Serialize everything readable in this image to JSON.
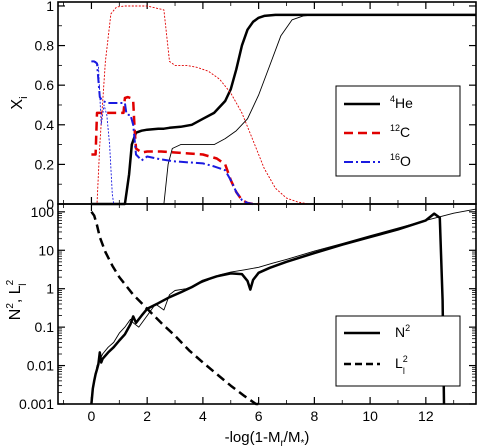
{
  "chart_data": [
    {
      "type": "line",
      "ylabel": "X",
      "ylabel_sub": "i",
      "xlim": [
        -1.2,
        13.8
      ],
      "ylim": [
        0,
        1.02
      ],
      "yticks": [
        "0",
        "0.2",
        "0.4",
        "0.6",
        "0.8",
        "1"
      ],
      "ytick_values": [
        0,
        0.2,
        0.4,
        0.6,
        0.8,
        1.0
      ],
      "legend_position": "center-right",
      "series": [
        {
          "name": "4He",
          "sup": "4",
          "base": "He",
          "style": "solid-thick",
          "color": "#000000",
          "x": [
            0,
            1.2,
            1.35,
            1.45,
            1.6,
            1.8,
            2.0,
            2.4,
            2.6,
            2.8,
            3.2,
            3.6,
            4.0,
            4.4,
            4.8,
            5.0,
            5.2,
            5.4,
            5.6,
            5.8,
            6.0,
            6.2,
            6.6,
            7.0,
            8.0,
            10.0,
            12.0,
            13.8
          ],
          "y": [
            0,
            0,
            0.15,
            0.3,
            0.36,
            0.37,
            0.375,
            0.38,
            0.38,
            0.385,
            0.39,
            0.4,
            0.43,
            0.46,
            0.52,
            0.58,
            0.68,
            0.8,
            0.88,
            0.92,
            0.94,
            0.95,
            0.955,
            0.955,
            0.955,
            0.955,
            0.955,
            0.955
          ]
        },
        {
          "name": "4He-thin",
          "style": "solid-thin",
          "color": "#000000",
          "legend": false,
          "x": [
            0,
            2.6,
            2.75,
            2.9,
            3.2,
            3.6,
            4.0,
            4.4,
            4.8,
            5.2,
            5.6,
            6.0,
            6.4,
            6.8,
            7.2,
            7.6,
            8.0,
            10.0,
            13.8
          ],
          "y": [
            0,
            0,
            0.2,
            0.28,
            0.3,
            0.3,
            0.3,
            0.3,
            0.33,
            0.37,
            0.43,
            0.55,
            0.7,
            0.85,
            0.93,
            0.95,
            0.955,
            0.955,
            0.955
          ]
        },
        {
          "name": "12C",
          "sup": "12",
          "base": "C",
          "style": "dashed-thick",
          "color": "#e00000",
          "x": [
            0,
            0.15,
            0.2,
            0.3,
            0.5,
            0.8,
            1.0,
            1.15,
            1.2,
            1.3,
            1.4,
            1.5,
            1.55,
            1.6,
            1.8,
            2.0,
            2.5,
            3.0,
            3.5,
            4.0,
            4.5,
            4.8,
            5.0,
            5.2,
            5.4,
            5.6,
            5.8,
            6.0
          ],
          "y": [
            0.25,
            0.25,
            0.46,
            0.46,
            0.46,
            0.46,
            0.46,
            0.46,
            0.535,
            0.54,
            0.535,
            0.52,
            0.38,
            0.28,
            0.26,
            0.265,
            0.265,
            0.26,
            0.255,
            0.25,
            0.23,
            0.2,
            0.12,
            0.06,
            0.02,
            0.005,
            0,
            0
          ]
        },
        {
          "name": "16O",
          "sup": "16",
          "base": "O",
          "style": "dashdot-thick",
          "color": "#1a1ae0",
          "x": [
            0,
            0.1,
            0.2,
            0.3,
            0.4,
            0.6,
            1.0,
            1.2,
            1.25,
            1.3,
            1.4,
            1.5,
            1.6,
            1.8,
            2.0,
            2.5,
            3.0,
            3.5,
            4.0,
            4.4,
            4.8,
            5.0,
            5.2,
            5.4,
            5.6,
            5.8
          ],
          "y": [
            0.72,
            0.72,
            0.71,
            0.54,
            0.52,
            0.51,
            0.51,
            0.51,
            0.46,
            0.45,
            0.45,
            0.4,
            0.25,
            0.22,
            0.24,
            0.225,
            0.215,
            0.21,
            0.205,
            0.19,
            0.17,
            0.12,
            0.06,
            0.02,
            0.005,
            0
          ]
        },
        {
          "name": "12C-thin",
          "style": "dotted-thin",
          "color": "#e00000",
          "legend": false,
          "x": [
            0,
            0.2,
            0.3,
            0.5,
            0.7,
            0.9,
            1.2,
            2.0,
            2.6,
            2.8,
            3.0,
            3.4,
            3.8,
            4.2,
            4.6,
            5.0,
            5.4,
            5.8,
            6.2,
            6.6,
            7.0,
            7.4,
            7.8,
            8.0
          ],
          "y": [
            0,
            0,
            0.3,
            0.72,
            0.96,
            0.995,
            1.0,
            1.0,
            0.98,
            0.72,
            0.7,
            0.7,
            0.69,
            0.67,
            0.63,
            0.56,
            0.46,
            0.32,
            0.18,
            0.08,
            0.03,
            0.01,
            0,
            0
          ]
        },
        {
          "name": "16O-thin",
          "style": "dotted-thin",
          "color": "#1a1ae0",
          "legend": false,
          "x": [
            0,
            0.15,
            0.25,
            0.35,
            0.45,
            0.55,
            0.65,
            0.75,
            0.8
          ],
          "y": [
            0.72,
            0.72,
            0.7,
            0.4,
            0.5,
            0.45,
            0.3,
            0.05,
            0
          ]
        }
      ]
    },
    {
      "type": "line",
      "xlabel": "-log(1-M/M)",
      "xlabel_main": "-log(1-M",
      "xlabel_sub1": "r",
      "xlabel_mid": "/M",
      "xlabel_sub2": "*",
      "xlabel_end": ")",
      "ylabel": "N, L",
      "ylabel_main1": "N",
      "ylabel_sup1": "2",
      "ylabel_sep": ", L",
      "ylabel_sup2": "2",
      "ylabel_sub2": "l",
      "xlim": [
        -1.2,
        13.8
      ],
      "xticks": [
        "0",
        "2",
        "4",
        "6",
        "8",
        "10",
        "12"
      ],
      "xtick_values": [
        0,
        2,
        4,
        6,
        8,
        10,
        12
      ],
      "ylog": true,
      "ylim": [
        0.001,
        160
      ],
      "yticks": [
        "0.001",
        "0.01",
        "0.1",
        "1",
        "10",
        "100"
      ],
      "ytick_values": [
        0.001,
        0.01,
        0.1,
        1,
        10,
        100
      ],
      "legend_position": "bottom-right",
      "series": [
        {
          "name": "N2",
          "base": "N",
          "sup": "2",
          "style": "solid-thick",
          "color": "#000000",
          "x": [
            0,
            0.05,
            0.1,
            0.15,
            0.2,
            0.25,
            0.3,
            0.35,
            0.4,
            0.6,
            0.8,
            1.0,
            1.2,
            1.4,
            1.5,
            1.6,
            1.8,
            2.0,
            2.4,
            2.8,
            3.2,
            3.6,
            4.0,
            4.5,
            5.0,
            5.4,
            5.6,
            5.7,
            5.8,
            6.0,
            6.4,
            7.0,
            8.0,
            9.0,
            10.0,
            11.0,
            12.0,
            12.3,
            12.5,
            12.6,
            12.65
          ],
          "y": [
            0.001,
            0.0025,
            0.004,
            0.006,
            0.008,
            0.011,
            0.022,
            0.012,
            0.015,
            0.022,
            0.03,
            0.045,
            0.065,
            0.12,
            0.19,
            0.13,
            0.2,
            0.3,
            0.42,
            0.6,
            0.8,
            1.1,
            1.6,
            2.1,
            2.5,
            2.4,
            1.6,
            0.95,
            1.7,
            2.6,
            3.5,
            5.0,
            8.5,
            14,
            22,
            35,
            60,
            90,
            70,
            0.5,
            0.001
          ]
        },
        {
          "name": "N2-thin",
          "style": "solid-thin",
          "color": "#000000",
          "legend": false,
          "x": [
            0,
            0.1,
            0.2,
            0.4,
            0.6,
            0.8,
            1.0,
            1.2,
            1.4,
            1.5,
            1.7,
            2.0,
            2.3,
            2.6,
            2.8,
            3.0,
            3.4,
            3.8,
            4.2,
            4.6,
            5.0,
            5.5,
            6.0,
            6.5,
            7.0,
            8.0,
            9.0,
            10.0,
            11.0,
            12.0,
            13.0,
            13.8
          ],
          "y": [
            0.001,
            0.004,
            0.01,
            0.02,
            0.03,
            0.04,
            0.07,
            0.1,
            0.16,
            0.13,
            0.1,
            0.2,
            0.4,
            0.28,
            0.7,
            0.9,
            1.0,
            1.3,
            1.7,
            2.3,
            2.7,
            3.1,
            3.6,
            4.6,
            5.8,
            9.5,
            15,
            24,
            38,
            60,
            92,
            118
          ]
        },
        {
          "name": "L2l",
          "base": "L",
          "sup": "2",
          "sub": "l",
          "style": "dashed-thick",
          "color": "#000000",
          "x": [
            0,
            0.1,
            0.2,
            0.3,
            0.5,
            0.75,
            1.0,
            1.5,
            2.0,
            2.5,
            3.0,
            3.5,
            4.0,
            4.5,
            5.0,
            5.5,
            5.9,
            6.0
          ],
          "y": [
            100,
            80,
            45,
            22,
            9,
            4,
            2.0,
            0.7,
            0.3,
            0.13,
            0.06,
            0.025,
            0.012,
            0.006,
            0.003,
            0.0016,
            0.001,
            0.001
          ]
        }
      ]
    }
  ]
}
